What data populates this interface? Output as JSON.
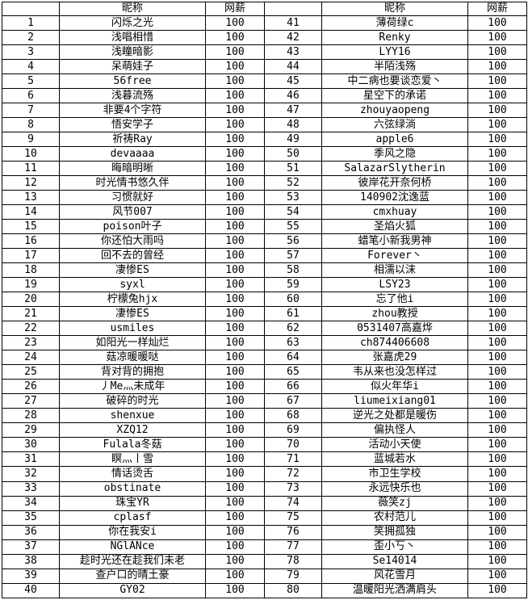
{
  "colors": {
    "background": "#ffffff",
    "border": "#000000",
    "text": "#000000"
  },
  "table": {
    "header": {
      "index_label": "",
      "nickname_label": "昵称",
      "salary_label": "网薪"
    },
    "entries": [
      {
        "no": "1",
        "name": "闪烁之光",
        "salary": "100"
      },
      {
        "no": "2",
        "name": "浅唱相惜",
        "salary": "100"
      },
      {
        "no": "3",
        "name": "浅瞳暗影",
        "salary": "100"
      },
      {
        "no": "4",
        "name": "呆萌娃子",
        "salary": "100"
      },
      {
        "no": "5",
        "name": "56free",
        "salary": "100"
      },
      {
        "no": "6",
        "name": "浅暮流殇",
        "salary": "100"
      },
      {
        "no": "7",
        "name": "非要4个字符",
        "salary": "100"
      },
      {
        "no": "8",
        "name": "悟安学子",
        "salary": "100"
      },
      {
        "no": "9",
        "name": "祈祷Ray",
        "salary": "100"
      },
      {
        "no": "10",
        "name": "devaaaa",
        "salary": "100"
      },
      {
        "no": "11",
        "name": "晦暗明晰",
        "salary": "100"
      },
      {
        "no": "12",
        "name": "时光情书悠久伴",
        "salary": "100"
      },
      {
        "no": "13",
        "name": "习惯就好",
        "salary": "100"
      },
      {
        "no": "14",
        "name": "风节007",
        "salary": "100"
      },
      {
        "no": "15",
        "name": "poison叶子",
        "salary": "100"
      },
      {
        "no": "16",
        "name": "你还怕大雨吗",
        "salary": "100"
      },
      {
        "no": "17",
        "name": "回不去的曾经",
        "salary": "100"
      },
      {
        "no": "18",
        "name": "凄惨ES",
        "salary": "100"
      },
      {
        "no": "19",
        "name": "syxl",
        "salary": "100"
      },
      {
        "no": "20",
        "name": "柠檬兔hjx",
        "salary": "100"
      },
      {
        "no": "21",
        "name": "凄惨ES",
        "salary": "100"
      },
      {
        "no": "22",
        "name": "usmiles",
        "salary": "100"
      },
      {
        "no": "23",
        "name": "如阳光一样灿烂",
        "salary": "100"
      },
      {
        "no": "24",
        "name": "菇凉暖暖哒",
        "salary": "100"
      },
      {
        "no": "25",
        "name": "背对背的拥抱",
        "salary": "100"
      },
      {
        "no": "26",
        "name": "丿Me灬未成年",
        "salary": "100"
      },
      {
        "no": "27",
        "name": "破碎的时光",
        "salary": "100"
      },
      {
        "no": "28",
        "name": "shenxue",
        "salary": "100"
      },
      {
        "no": "29",
        "name": "XZQ12",
        "salary": "100"
      },
      {
        "no": "30",
        "name": "Fulala冬菇",
        "salary": "100"
      },
      {
        "no": "31",
        "name": "瞑灬丨雪",
        "salary": "100"
      },
      {
        "no": "32",
        "name": "情话烫舌",
        "salary": "100"
      },
      {
        "no": "33",
        "name": "obstinate",
        "salary": "100"
      },
      {
        "no": "34",
        "name": "珠宝YR",
        "salary": "100"
      },
      {
        "no": "35",
        "name": "cplasf",
        "salary": "100"
      },
      {
        "no": "36",
        "name": "你在我安i",
        "salary": "100"
      },
      {
        "no": "37",
        "name": "NGlANce",
        "salary": "100"
      },
      {
        "no": "38",
        "name": "趁时光还在趁我们未老",
        "salary": "100"
      },
      {
        "no": "39",
        "name": "查户口的晴土豪",
        "salary": "100"
      },
      {
        "no": "40",
        "name": "GY02",
        "salary": "100"
      },
      {
        "no": "41",
        "name": "薄荷绿c",
        "salary": "100"
      },
      {
        "no": "42",
        "name": "Renky",
        "salary": "100"
      },
      {
        "no": "43",
        "name": "LYY16",
        "salary": "100"
      },
      {
        "no": "44",
        "name": "半陌浅殇",
        "salary": "100"
      },
      {
        "no": "45",
        "name": "中二病也要谈恋爱丶",
        "salary": "100"
      },
      {
        "no": "46",
        "name": "星空下的承诺",
        "salary": "100"
      },
      {
        "no": "47",
        "name": "zhouyaopeng",
        "salary": "100"
      },
      {
        "no": "48",
        "name": "六弦绿淌",
        "salary": "100"
      },
      {
        "no": "49",
        "name": "apple6",
        "salary": "100"
      },
      {
        "no": "50",
        "name": "季风之隐",
        "salary": "100"
      },
      {
        "no": "51",
        "name": "SalazarSlytherin",
        "salary": "100"
      },
      {
        "no": "52",
        "name": "彼岸花开奈何桥",
        "salary": "100"
      },
      {
        "no": "53",
        "name": "140902沈逸蓝",
        "salary": "100"
      },
      {
        "no": "54",
        "name": "cmxhuay",
        "salary": "100"
      },
      {
        "no": "55",
        "name": "圣焰火狐",
        "salary": "100"
      },
      {
        "no": "56",
        "name": "蜡笔小新我男神",
        "salary": "100"
      },
      {
        "no": "57",
        "name": "Forever丶",
        "salary": "100"
      },
      {
        "no": "58",
        "name": "相濡以沫",
        "salary": "100"
      },
      {
        "no": "59",
        "name": "LSY23",
        "salary": "100"
      },
      {
        "no": "60",
        "name": "忘了他i",
        "salary": "100"
      },
      {
        "no": "61",
        "name": "zhou教授",
        "salary": "100"
      },
      {
        "no": "62",
        "name": "0531407高嘉烨",
        "salary": "100"
      },
      {
        "no": "63",
        "name": "ch874406608",
        "salary": "100"
      },
      {
        "no": "64",
        "name": "张嘉虎29",
        "salary": "100"
      },
      {
        "no": "65",
        "name": "韦从来也没怎样过",
        "salary": "100"
      },
      {
        "no": "66",
        "name": "似火年华i",
        "salary": "100"
      },
      {
        "no": "67",
        "name": "liumeixiang01",
        "salary": "100"
      },
      {
        "no": "68",
        "name": "逆光之处都是暖伤",
        "salary": "100"
      },
      {
        "no": "69",
        "name": "偏执怪人",
        "salary": "100"
      },
      {
        "no": "70",
        "name": "活动小天使",
        "salary": "100"
      },
      {
        "no": "71",
        "name": "蓝城若水",
        "salary": "100"
      },
      {
        "no": "72",
        "name": "市卫生学校",
        "salary": "100"
      },
      {
        "no": "73",
        "name": "永远快乐也",
        "salary": "100"
      },
      {
        "no": "74",
        "name": "薇笑zj",
        "salary": "100"
      },
      {
        "no": "75",
        "name": "农村范儿",
        "salary": "100"
      },
      {
        "no": "76",
        "name": "笑拥孤独",
        "salary": "100"
      },
      {
        "no": "77",
        "name": "歪小丂丶",
        "salary": "100"
      },
      {
        "no": "78",
        "name": "Se14014",
        "salary": "100"
      },
      {
        "no": "79",
        "name": "风花雪月",
        "salary": "100"
      },
      {
        "no": "80",
        "name": "温暖阳光洒满肩头",
        "salary": "100"
      }
    ]
  }
}
